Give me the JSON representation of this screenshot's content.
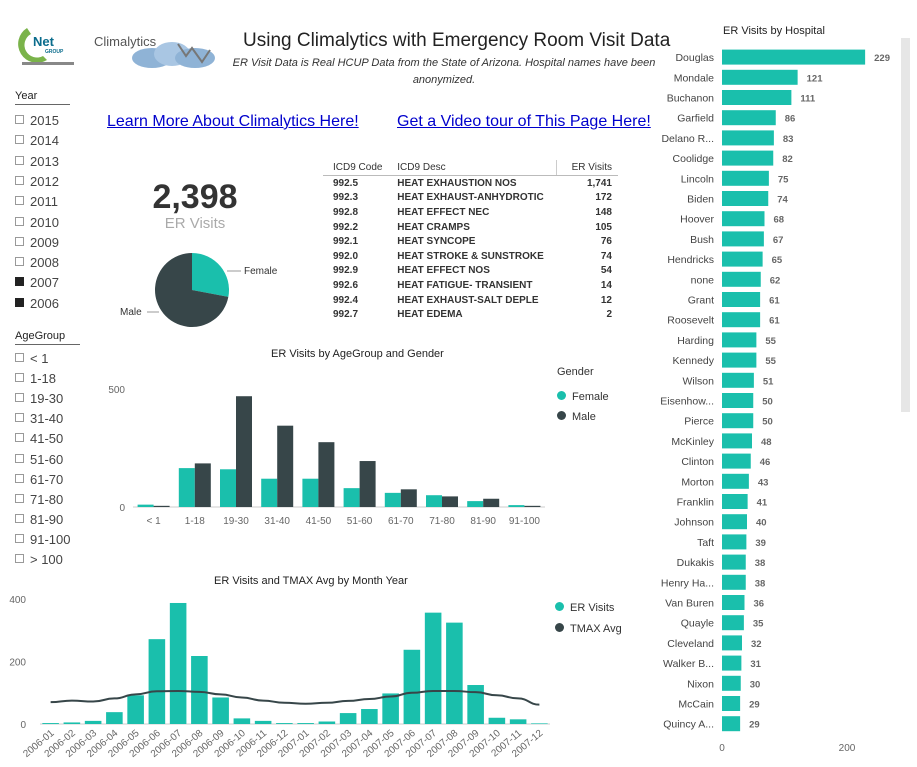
{
  "header": {
    "logo_brand": "Net",
    "logo_caption": "GROUP",
    "app_logo_text": "Climalytics",
    "title": "Using Climalytics with Emergency Room Visit Data",
    "subtitle": "ER Visit Data is Real HCUP Data from the State of Arizona. Hospital names have been anonymized."
  },
  "links": {
    "learn_more": "Learn More About Climalytics Here!",
    "video_tour": "Get a Video tour of This Page Here!"
  },
  "year_slicer": {
    "title": "Year",
    "items": [
      {
        "label": "2015",
        "checked": false
      },
      {
        "label": "2014",
        "checked": false
      },
      {
        "label": "2013",
        "checked": false
      },
      {
        "label": "2012",
        "checked": false
      },
      {
        "label": "2011",
        "checked": false
      },
      {
        "label": "2010",
        "checked": false
      },
      {
        "label": "2009",
        "checked": false
      },
      {
        "label": "2008",
        "checked": false
      },
      {
        "label": "2007",
        "checked": true
      },
      {
        "label": "2006",
        "checked": true
      }
    ]
  },
  "age_slicer": {
    "title": "AgeGroup",
    "items": [
      {
        "label": "< 1",
        "checked": false
      },
      {
        "label": "1-18",
        "checked": false
      },
      {
        "label": "19-30",
        "checked": false
      },
      {
        "label": "31-40",
        "checked": false
      },
      {
        "label": "41-50",
        "checked": false
      },
      {
        "label": "51-60",
        "checked": false
      },
      {
        "label": "61-70",
        "checked": false
      },
      {
        "label": "71-80",
        "checked": false
      },
      {
        "label": "81-90",
        "checked": false
      },
      {
        "label": "91-100",
        "checked": false
      },
      {
        "label": "> 100",
        "checked": false
      }
    ]
  },
  "kpi": {
    "value": "2,398",
    "label": "ER Visits"
  },
  "icd_table": {
    "headers": [
      "ICD9 Code",
      "ICD9 Desc",
      "ER Visits"
    ],
    "rows": [
      [
        "992.5",
        "HEAT EXHAUSTION NOS",
        "1,741"
      ],
      [
        "992.3",
        "HEAT EXHAUST-ANHYDROTIC",
        "172"
      ],
      [
        "992.8",
        "HEAT EFFECT NEC",
        "148"
      ],
      [
        "992.2",
        "HEAT CRAMPS",
        "105"
      ],
      [
        "992.1",
        "HEAT SYNCOPE",
        "76"
      ],
      [
        "992.0",
        "HEAT STROKE & SUNSTROKE",
        "74"
      ],
      [
        "992.9",
        "HEAT EFFECT NOS",
        "54"
      ],
      [
        "992.6",
        "HEAT FATIGUE- TRANSIENT",
        "14"
      ],
      [
        "992.4",
        "HEAT EXHAUST-SALT DEPLE",
        "12"
      ],
      [
        "992.7",
        "HEAT EDEMA",
        "2"
      ]
    ]
  },
  "colors": {
    "teal": "#1ABFAC",
    "dark": "#374649",
    "link": "#0000cc"
  },
  "chart_data": [
    {
      "id": "gender_pie",
      "type": "pie",
      "title": "",
      "labels": [
        "Female",
        "Male"
      ],
      "values": [
        0.28,
        0.72
      ]
    },
    {
      "id": "age_gender",
      "type": "bar",
      "title": "ER Visits by AgeGroup and Gender",
      "legend_title": "Gender",
      "legend_position": "right",
      "categories": [
        "< 1",
        "1-18",
        "19-30",
        "31-40",
        "41-50",
        "51-60",
        "61-70",
        "71-80",
        "81-90",
        "91-100"
      ],
      "series": [
        {
          "name": "Female",
          "values": [
            10,
            165,
            160,
            120,
            120,
            80,
            60,
            50,
            25,
            8
          ]
        },
        {
          "name": "Male",
          "values": [
            5,
            185,
            470,
            345,
            275,
            195,
            75,
            45,
            35,
            5
          ]
        }
      ],
      "yticks": [
        0,
        500
      ],
      "ylim": [
        0,
        560
      ]
    },
    {
      "id": "month_year",
      "type": "bar",
      "title": "ER Visits and TMAX Avg by Month Year",
      "legend_position": "right",
      "categories": [
        "2006-01",
        "2006-02",
        "2006-03",
        "2006-04",
        "2006-05",
        "2006-06",
        "2006-07",
        "2006-08",
        "2006-09",
        "2006-10",
        "2006-11",
        "2006-12",
        "2007-01",
        "2007-02",
        "2007-03",
        "2007-04",
        "2007-05",
        "2007-06",
        "2007-07",
        "2007-08",
        "2007-09",
        "2007-10",
        "2007-11",
        "2007-12"
      ],
      "series": [
        {
          "name": "ER Visits",
          "kind": "bar",
          "values": [
            3,
            5,
            10,
            38,
            92,
            272,
            388,
            218,
            85,
            18,
            10,
            3,
            3,
            8,
            35,
            48,
            98,
            238,
            357,
            325,
            125,
            20,
            15,
            2
          ]
        },
        {
          "name": "TMAX Avg",
          "kind": "line",
          "values": [
            70,
            75,
            72,
            82,
            95,
            105,
            106,
            103,
            95,
            85,
            75,
            68,
            65,
            68,
            74,
            80,
            88,
            100,
            106,
            106,
            102,
            92,
            82,
            62
          ]
        }
      ],
      "yticks": [
        0,
        200,
        400
      ],
      "ylim": [
        0,
        420
      ]
    },
    {
      "id": "hospital",
      "type": "bar",
      "orientation": "horizontal",
      "title": "ER Visits by Hospital",
      "categories": [
        "Douglas",
        "Mondale",
        "Buchanon",
        "Garfield",
        "Delano R...",
        "Coolidge",
        "Lincoln",
        "Biden",
        "Hoover",
        "Bush",
        "Hendricks",
        "none",
        "Grant",
        "Roosevelt",
        "Harding",
        "Kennedy",
        "Wilson",
        "Eisenhow...",
        "Pierce",
        "McKinley",
        "Clinton",
        "Morton",
        "Franklin",
        "Johnson",
        "Taft",
        "Dukakis",
        "Henry Ha...",
        "Van Buren",
        "Quayle",
        "Cleveland",
        "Walker B...",
        "Nixon",
        "McCain",
        "Quincy A..."
      ],
      "values": [
        229,
        121,
        111,
        86,
        83,
        82,
        75,
        74,
        68,
        67,
        65,
        62,
        61,
        61,
        55,
        55,
        51,
        50,
        50,
        48,
        46,
        43,
        41,
        40,
        39,
        38,
        38,
        36,
        35,
        32,
        31,
        30,
        29,
        29
      ],
      "xticks": [
        0,
        200
      ],
      "xlim": [
        0,
        240
      ]
    }
  ]
}
